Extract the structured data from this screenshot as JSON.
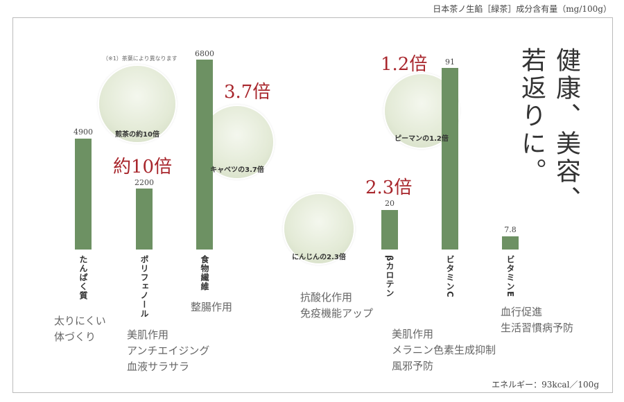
{
  "title": "日本茶ノ生餡［緑茶］成分含有量（mg/100g）",
  "note": "（※1）茶葉により異なります",
  "slogan": [
    "健康、美容、",
    "若返りに。"
  ],
  "energy": "エネルギー：93kcal／100g",
  "items": [
    {
      "label": "たんぱく質",
      "value": "4900",
      "effects": [
        "太りにくい",
        "体づくり"
      ]
    },
    {
      "label": "ポリフェノール",
      "value": "2200",
      "multiplier": "約10倍",
      "caption": "煎茶の約10倍",
      "effects": [
        "美肌作用",
        "アンチエイジング",
        "血液サラサラ"
      ]
    },
    {
      "label": "食物繊維",
      "value": "6800",
      "multiplier": "3.7倍",
      "caption": "キャベツの3.7倍",
      "effects": [
        "整腸作用"
      ]
    },
    {
      "label": "βカロテン",
      "value": "20",
      "multiplier": "2.3倍",
      "caption": "にんじんの2.3倍",
      "effects": [
        "抗酸化作用",
        "免疫機能アップ"
      ]
    },
    {
      "label": "ビタミンC",
      "value": "91",
      "multiplier": "1.2倍",
      "caption": "ピーマンの1.2倍",
      "effects": [
        "美肌作用",
        "メラニン色素生成抑制",
        "風邪予防"
      ]
    },
    {
      "label": "ビタミンE",
      "value": "7.8",
      "effects": [
        "血行促進",
        "生活習慣病予防"
      ]
    }
  ]
}
